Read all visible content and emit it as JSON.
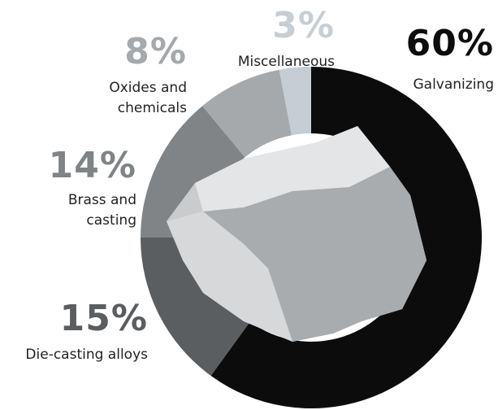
{
  "chart_data": {
    "type": "pie",
    "donut": true,
    "categories": [
      "Galvanizing",
      "Die-casting alloys",
      "Brass and casting",
      "Oxides and chemicals",
      "Miscellaneous"
    ],
    "values": [
      60,
      15,
      14,
      8,
      3
    ],
    "value_labels": [
      "60%",
      "15%",
      "14%",
      "8%",
      "3%"
    ],
    "colors": [
      "#0c0c0d",
      "#5b5e60",
      "#808486",
      "#a5a9ab",
      "#c6ced3"
    ]
  }
}
